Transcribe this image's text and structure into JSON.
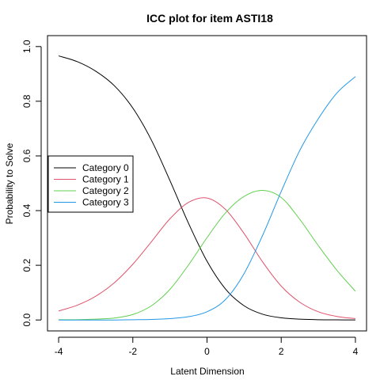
{
  "chart_data": {
    "type": "line",
    "title": "ICC plot for item ASTI18",
    "xlabel": "Latent Dimension",
    "ylabel": "Probability to Solve",
    "xlim": [
      -4.3,
      4.3
    ],
    "ylim": [
      -0.04,
      1.04
    ],
    "xticks": [
      -4,
      -2,
      0,
      2,
      4
    ],
    "yticks": [
      0.0,
      0.2,
      0.4,
      0.6,
      0.8,
      1.0
    ],
    "xtick_labels": [
      "-4",
      "-2",
      "0",
      "2",
      "4"
    ],
    "ytick_labels": [
      "0.0",
      "0.2",
      "0.4",
      "0.6",
      "0.8",
      "1.0"
    ],
    "grid": false,
    "legend_position": "left",
    "x": [
      -4,
      -3.5,
      -3,
      -2.5,
      -2,
      -1.5,
      -1,
      -0.5,
      0,
      0.5,
      1,
      1.5,
      2,
      2.5,
      3,
      3.5,
      4
    ],
    "series": [
      {
        "name": "Category 0",
        "color": "#000000",
        "values": [
          0.966,
          0.945,
          0.91,
          0.857,
          0.775,
          0.658,
          0.51,
          0.354,
          0.215,
          0.113,
          0.052,
          0.021,
          0.008,
          0.003,
          0.001,
          0.0004,
          0.0001
        ]
      },
      {
        "name": "Category 1",
        "color": "#DF536B",
        "values": [
          0.033,
          0.054,
          0.087,
          0.136,
          0.204,
          0.286,
          0.37,
          0.43,
          0.446,
          0.404,
          0.316,
          0.212,
          0.124,
          0.065,
          0.03,
          0.013,
          0.005
        ]
      },
      {
        "name": "Category 2",
        "color": "#61D04F",
        "values": [
          0.001,
          0.001,
          0.003,
          0.007,
          0.02,
          0.052,
          0.112,
          0.201,
          0.301,
          0.392,
          0.452,
          0.474,
          0.448,
          0.368,
          0.272,
          0.182,
          0.105
        ]
      },
      {
        "name": "Category 3",
        "color": "#2297E6",
        "values": [
          0.0,
          0.0,
          0.0,
          0.0,
          0.001,
          0.002,
          0.005,
          0.012,
          0.03,
          0.075,
          0.17,
          0.31,
          0.47,
          0.62,
          0.736,
          0.83,
          0.89
        ]
      }
    ]
  }
}
